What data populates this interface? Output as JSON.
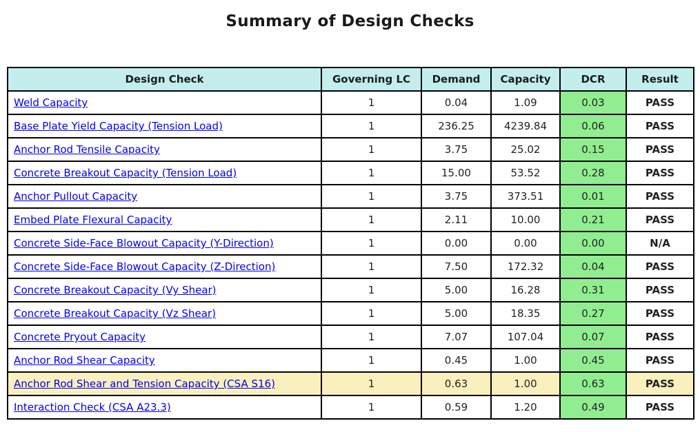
{
  "page": {
    "title": "Summary of Design Checks"
  },
  "colors": {
    "header_bg": "#c4eeee",
    "dcr_bg": "#90ee90",
    "highlight_bg": "#faf0be",
    "pass_color": "#008000",
    "link_color": "#0000ee",
    "border_color": "#000000",
    "title_color": "#1a1a1a"
  },
  "table": {
    "headers": [
      "Design Check",
      "Governing LC",
      "Demand",
      "Capacity",
      "DCR",
      "Result"
    ],
    "rows": [
      {
        "check": "Weld Capacity",
        "lc": "1",
        "demand": "0.04",
        "capacity": "1.09",
        "dcr": "0.03",
        "result": "PASS",
        "highlighted": false
      },
      {
        "check": "Base Plate Yield Capacity (Tension Load)",
        "lc": "1",
        "demand": "236.25",
        "capacity": "4239.84",
        "dcr": "0.06",
        "result": "PASS",
        "highlighted": false
      },
      {
        "check": "Anchor Rod Tensile Capacity",
        "lc": "1",
        "demand": "3.75",
        "capacity": "25.02",
        "dcr": "0.15",
        "result": "PASS",
        "highlighted": false
      },
      {
        "check": "Concrete Breakout Capacity (Tension Load)",
        "lc": "1",
        "demand": "15.00",
        "capacity": "53.52",
        "dcr": "0.28",
        "result": "PASS",
        "highlighted": false
      },
      {
        "check": "Anchor Pullout Capacity",
        "lc": "1",
        "demand": "3.75",
        "capacity": "373.51",
        "dcr": "0.01",
        "result": "PASS",
        "highlighted": false
      },
      {
        "check": "Embed Plate Flexural Capacity",
        "lc": "1",
        "demand": "2.11",
        "capacity": "10.00",
        "dcr": "0.21",
        "result": "PASS",
        "highlighted": false
      },
      {
        "check": "Concrete Side-Face Blowout Capacity (Y-Direction)",
        "lc": "1",
        "demand": "0.00",
        "capacity": "0.00",
        "dcr": "0.00",
        "result": "N/A",
        "highlighted": false
      },
      {
        "check": "Concrete Side-Face Blowout Capacity (Z-Direction)",
        "lc": "1",
        "demand": "7.50",
        "capacity": "172.32",
        "dcr": "0.04",
        "result": "PASS",
        "highlighted": false
      },
      {
        "check": "Concrete Breakout Capacity (Vy Shear)",
        "lc": "1",
        "demand": "5.00",
        "capacity": "16.28",
        "dcr": "0.31",
        "result": "PASS",
        "highlighted": false
      },
      {
        "check": "Concrete Breakout Capacity (Vz Shear)",
        "lc": "1",
        "demand": "5.00",
        "capacity": "18.35",
        "dcr": "0.27",
        "result": "PASS",
        "highlighted": false
      },
      {
        "check": "Concrete Pryout Capacity",
        "lc": "1",
        "demand": "7.07",
        "capacity": "107.04",
        "dcr": "0.07",
        "result": "PASS",
        "highlighted": false
      },
      {
        "check": "Anchor Rod Shear Capacity",
        "lc": "1",
        "demand": "0.45",
        "capacity": "1.00",
        "dcr": "0.45",
        "result": "PASS",
        "highlighted": false
      },
      {
        "check": "Anchor Rod Shear and Tension Capacity (CSA S16)",
        "lc": "1",
        "demand": "0.63",
        "capacity": "1.00",
        "dcr": "0.63",
        "result": "PASS",
        "highlighted": true
      },
      {
        "check": "Interaction Check (CSA A23.3)",
        "lc": "1",
        "demand": "0.59",
        "capacity": "1.20",
        "dcr": "0.49",
        "result": "PASS",
        "highlighted": false
      }
    ]
  }
}
